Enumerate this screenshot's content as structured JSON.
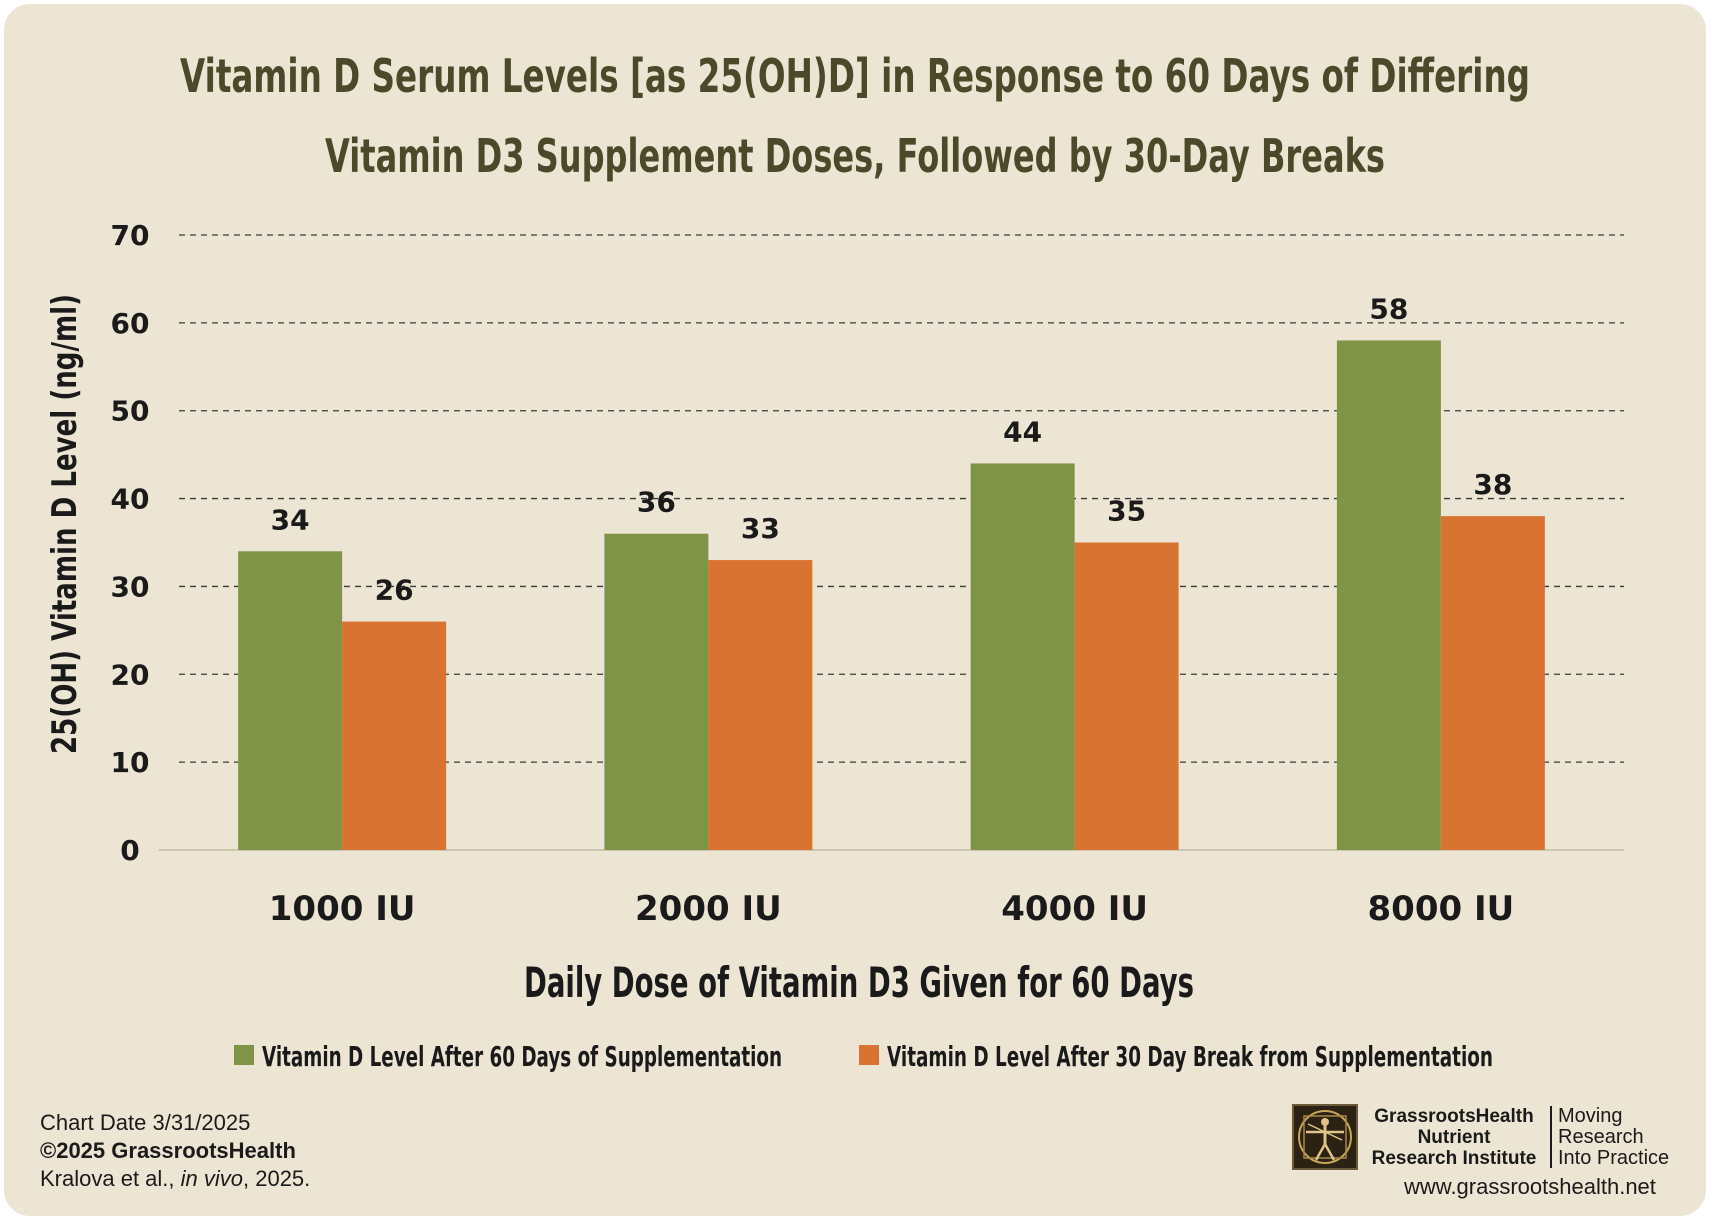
{
  "chart_data": {
    "type": "bar",
    "title_lines": [
      "Vitamin D Serum Levels [as 25(OH)D] in Response to 60 Days of Differing",
      "Vitamin D3 Supplement Doses, Followed by 30-Day Breaks"
    ],
    "xlabel": "Daily Dose of Vitamin D3 Given for 60 Days",
    "ylabel": "25(OH) Vitamin D Level (ng/ml)",
    "categories": [
      "1000 IU",
      "2000 IU",
      "4000 IU",
      "8000 IU"
    ],
    "series": [
      {
        "name": "Vitamin D Level After 60 Days of Supplementation",
        "values": [
          34,
          36,
          44,
          58
        ],
        "color": "#7f9447"
      },
      {
        "name": "Vitamin D Level After 30 Day Break from Supplementation",
        "values": [
          26,
          33,
          35,
          38
        ],
        "color": "#d87331"
      }
    ],
    "ylim": [
      0,
      70
    ],
    "yticks": [
      0,
      10,
      20,
      30,
      40,
      50,
      60,
      70
    ],
    "grid": true,
    "data_labels": true,
    "legend_position": "bottom"
  },
  "footer": {
    "chart_date": "Chart Date 3/31/2025",
    "copyright": "©2025 GrassrootsHealth",
    "citation_prefix": "Kralova et al., ",
    "citation_italic": "in vivo",
    "citation_suffix": ", 2025."
  },
  "brand": {
    "logo_icon": "vitruvian-man-icon",
    "org_line1": "GrassrootsHealth",
    "org_line2": "Nutrient",
    "org_line3": "Research Institute",
    "tagline_line1": "Moving",
    "tagline_line2": "Research",
    "tagline_line3": "Into Practice",
    "website": "www.grassrootshealth.net"
  }
}
